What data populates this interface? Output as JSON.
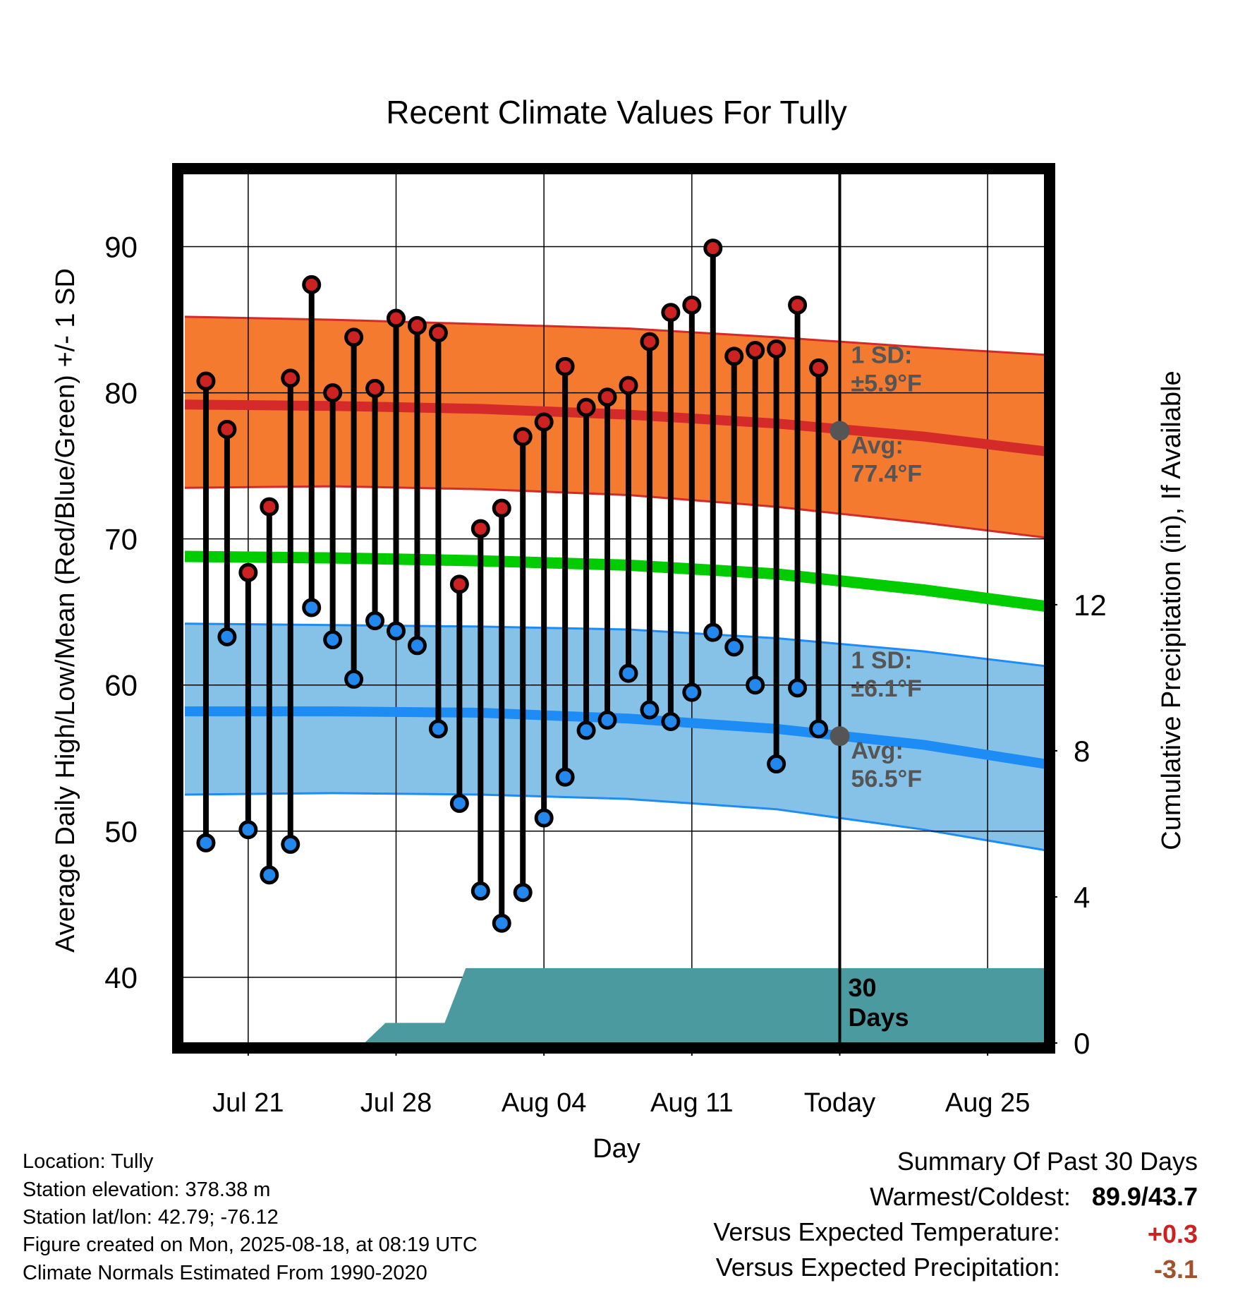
{
  "chart_data": {
    "type": "line",
    "title": "Recent Climate Values For Tully",
    "xlabel": "Day",
    "ylabel": "Average Daily High/Low/Mean (Red/Blue/Green) +/- 1 SD",
    "ylabel_right": "Cumulative Precipitation (in), If Available",
    "ylim": [
      35.5,
      95
    ],
    "ylim_right": [
      0,
      23.8
    ],
    "x_ticks": [
      "Jul 21",
      "Jul 28",
      "Aug 04",
      "Aug 11",
      "Today",
      "Aug 25"
    ],
    "x_tick_days": [
      0,
      7,
      14,
      21,
      28,
      35
    ],
    "xlim": [
      -3.1,
      37.7
    ],
    "y_ticks": [
      40,
      50,
      60,
      70,
      80,
      90
    ],
    "y_minor_ticks": [
      45,
      55,
      65,
      75,
      85
    ],
    "y_ticks_right": [
      0,
      4,
      8,
      12
    ],
    "grid": true,
    "today_label": "30\nDays",
    "series": [
      {
        "name": "High",
        "color": "#cc2222",
        "days": [
          -2,
          -1,
          0,
          1,
          2,
          3,
          4,
          5,
          6,
          7,
          8,
          9,
          10,
          11,
          12,
          13,
          14,
          15,
          16,
          17,
          18,
          19,
          20,
          21,
          22,
          23,
          24,
          25,
          26,
          27
        ],
        "values": [
          80.8,
          77.5,
          67.7,
          72.2,
          81.0,
          87.4,
          80.0,
          83.8,
          80.3,
          85.1,
          84.6,
          84.1,
          66.9,
          70.7,
          72.1,
          77.0,
          78.0,
          81.8,
          79.0,
          79.7,
          80.5,
          83.5,
          85.5,
          86.0,
          89.9,
          82.5,
          82.9,
          83.0,
          86.0,
          81.7
        ]
      },
      {
        "name": "Low",
        "color": "#2288ee",
        "days": [
          -2,
          -1,
          0,
          1,
          2,
          3,
          4,
          5,
          6,
          7,
          8,
          9,
          10,
          11,
          12,
          13,
          14,
          15,
          16,
          17,
          18,
          19,
          20,
          21,
          22,
          23,
          24,
          25,
          26,
          27
        ],
        "values": [
          49.2,
          63.3,
          50.1,
          47.0,
          49.1,
          65.3,
          63.1,
          60.4,
          64.4,
          63.7,
          62.7,
          57.0,
          51.9,
          45.9,
          43.7,
          45.8,
          50.9,
          53.7,
          56.9,
          57.6,
          60.8,
          58.3,
          57.5,
          59.5,
          63.6,
          62.6,
          60.0,
          54.6,
          59.8,
          57.0
        ]
      }
    ],
    "normals": {
      "days": [
        -3,
        4,
        11,
        18,
        25,
        32,
        37.7
      ],
      "high_avg": [
        79.2,
        79.1,
        78.9,
        78.5,
        77.9,
        77.0,
        76.0
      ],
      "high_upper": [
        85.2,
        85.0,
        84.7,
        84.4,
        83.8,
        83.1,
        82.6
      ],
      "high_lower": [
        73.5,
        73.6,
        73.4,
        73.0,
        72.2,
        71.1,
        70.1
      ],
      "mean_avg": [
        68.8,
        68.7,
        68.5,
        68.2,
        67.6,
        66.5,
        65.4
      ],
      "low_avg": [
        58.2,
        58.2,
        58.1,
        57.7,
        57.0,
        55.9,
        54.6
      ],
      "low_upper": [
        64.2,
        64.1,
        64.0,
        63.8,
        63.2,
        62.3,
        61.3
      ],
      "low_lower": [
        52.5,
        52.6,
        52.5,
        52.2,
        51.5,
        50.1,
        48.7
      ]
    },
    "precipitation": {
      "days": [
        -3,
        5.5,
        6.5,
        9.3,
        10.3,
        37.7
      ],
      "values": [
        0,
        0,
        0.55,
        0.55,
        2.05,
        2.05
      ]
    },
    "today_markers": [
      {
        "label": "Avg:",
        "value_text": "77.4°F",
        "sd_label": "1 SD:",
        "sd_text": "±5.9°F",
        "value": 77.4
      },
      {
        "label": "Avg:",
        "value_text": "56.5°F",
        "sd_label": "1 SD:",
        "sd_text": "±6.1°F",
        "value": 56.5
      }
    ],
    "colors": {
      "high_band": "#f47a30",
      "high_line": "#d42a2a",
      "low_band": "#86c2e8",
      "low_line": "#1e8cf5",
      "mean_line": "#00cc00",
      "precip": "#4a9aa0",
      "marker_text": "#555555"
    }
  },
  "info": {
    "location": "Location: Tully",
    "elevation": "Station elevation: 378.38 m",
    "latlon": "Station lat/lon: 42.79; -76.12",
    "created": "Figure created on Mon, 2025-08-18, at 08:19 UTC",
    "normals": "Climate Normals Estimated From 1990-2020"
  },
  "summary": {
    "title": "Summary Of Past 30 Days",
    "warm_label": "Warmest/Coldest:",
    "warm_value": "89.9/43.7",
    "temp_label": "Versus Expected Temperature:",
    "temp_value": "+0.3",
    "temp_color": "#cc2222",
    "precip_label": "Versus Expected Precipitation:",
    "precip_value": "-3.1",
    "precip_color": "#a0522d"
  }
}
